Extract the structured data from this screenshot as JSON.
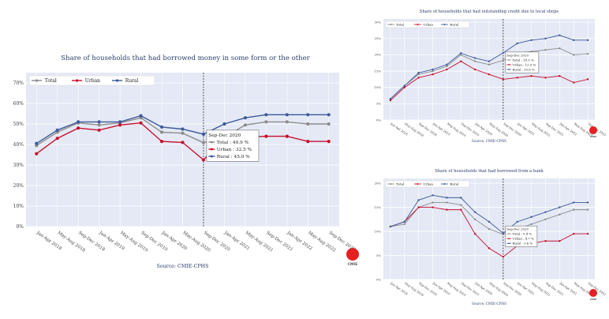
{
  "colors": {
    "total": "#8c8c8c",
    "urban": "#c8102e",
    "rural": "#3d5a99",
    "plot_bg": "#e4e9f5",
    "grid": "#ffffff",
    "title": "#2b3f6b",
    "logo_dot": "#e52020"
  },
  "logo": {
    "text": "CMIE"
  },
  "chart_data": [
    {
      "type": "line",
      "id": "main",
      "title": "Share of households that had borrowed money in some form or the other",
      "source": "Source: CMIE-CPHS",
      "categories": [
        "Jan-Apr 2018",
        "May-Aug 2018",
        "Sep-Dec 2018",
        "Jan-Apr 2019",
        "May-Aug 2019",
        "Sep-Dec 2019",
        "Jan-Apr 2020",
        "May-Aug 2020",
        "Sep-Dec 2020",
        "Jan-Apr 2021",
        "May-Aug 2021",
        "Sep-Dec 2021",
        "Jan-Apr 2022",
        "May-Aug 2022",
        "Sep-Dec 2022"
      ],
      "ylim": [
        0,
        75
      ],
      "yticks": [
        0,
        10,
        20,
        30,
        40,
        50,
        60,
        70
      ],
      "ytick_labels": [
        "0%",
        "10%",
        "20%",
        "30%",
        "40%",
        "50%",
        "60%",
        "70%"
      ],
      "series": [
        {
          "name": "Total",
          "key": "total",
          "values": [
            39.5,
            46,
            50.5,
            49.5,
            50.5,
            53,
            46,
            45.5,
            40.9,
            43.5,
            49.5,
            51,
            51,
            50,
            50
          ]
        },
        {
          "name": "Urban",
          "key": "urban",
          "values": [
            35.5,
            43,
            48,
            47,
            49.5,
            50.5,
            41.5,
            41,
            32.5,
            43,
            43.5,
            44,
            44,
            41.5,
            41.5
          ]
        },
        {
          "name": "Rural",
          "key": "rural",
          "values": [
            40.5,
            47,
            51,
            51,
            51,
            54,
            48.5,
            47.5,
            45.0,
            50,
            53,
            54.5,
            54.5,
            54.5,
            54.5
          ]
        }
      ],
      "vline_index": 8,
      "annotation": {
        "title": "Sep-Dec 2020",
        "lines": [
          "Total : 40.9 %",
          "Urban : 32.5 %",
          "Rural : 45.0 %"
        ]
      }
    },
    {
      "type": "line",
      "id": "credit",
      "title": "Share of households that had outstanding credit due to local shops",
      "source": "Source: CMIE-CPHS",
      "categories": [
        "Jan-Apr 2018",
        "May-Aug 2018",
        "Sep-Dec 2018",
        "Jan-Apr 2019",
        "May-Aug 2019",
        "Sep-Dec 2019",
        "Jan-Apr 2020",
        "May-Aug 2020",
        "Sep-Dec 2020",
        "Jan-Apr 2021",
        "May-Aug 2021",
        "Sep-Dec 2021",
        "Jan-Apr 2022",
        "May-Aug 2022",
        "Sep-Dec 2022"
      ],
      "ylim": [
        0,
        31
      ],
      "yticks": [
        0,
        5,
        10,
        15,
        20,
        25,
        30
      ],
      "ytick_labels": [
        "0%",
        "5%",
        "10%",
        "15%",
        "20%",
        "25%",
        "30%"
      ],
      "series": [
        {
          "name": "Total",
          "key": "total",
          "values": [
            6.5,
            10.5,
            14,
            15,
            16.5,
            20,
            18,
            17,
            18.3,
            20.5,
            21,
            21.5,
            22,
            20,
            20.3
          ]
        },
        {
          "name": "Urban",
          "key": "urban",
          "values": [
            6,
            10,
            13,
            14,
            15.5,
            18,
            15.5,
            14,
            12.5,
            13,
            13.5,
            13,
            13.5,
            11.5,
            12.5
          ]
        },
        {
          "name": "Rural",
          "key": "rural",
          "values": [
            6.5,
            10.5,
            14.5,
            15.5,
            17,
            20.5,
            19,
            18,
            20.6,
            23.5,
            24.5,
            25,
            26,
            24.5,
            24.5
          ]
        }
      ],
      "vline_index": 8,
      "annotation": {
        "title": "Sep-Dec 2020",
        "lines": [
          "Total : 18.3 %",
          "Urban : 12.5 %",
          "Rural : 20.6 %"
        ]
      }
    },
    {
      "type": "line",
      "id": "bank",
      "title": "Share of households that had borrowed from a bank",
      "source": "Source: CMIE-CPHS",
      "categories": [
        "Jan-Apr 2018",
        "May-Aug 2018",
        "Sep-Dec 2018",
        "Jan-Apr 2019",
        "May-Aug 2019",
        "Sep-Dec 2019",
        "Jan-Apr 2020",
        "May-Aug 2020",
        "Sep-Dec 2020",
        "Jan-Apr 2021",
        "May-Aug 2021",
        "Sep-Dec 2021",
        "Jan-Apr 2022",
        "May-Aug 2022",
        "Sep-Dec 2022"
      ],
      "ylim": [
        0,
        21
      ],
      "yticks": [
        0,
        5,
        10,
        15,
        20
      ],
      "ytick_labels": [
        "0%",
        "5%",
        "10%",
        "15%",
        "20%"
      ],
      "series": [
        {
          "name": "Total",
          "key": "total",
          "values": [
            11,
            11.5,
            15,
            16,
            16,
            15.5,
            12.5,
            10.5,
            9.4,
            10.5,
            11.5,
            12.5,
            13.5,
            14.5,
            14.5
          ]
        },
        {
          "name": "Urban",
          "key": "urban",
          "values": [
            11,
            12,
            15,
            15,
            14.5,
            14.5,
            9.5,
            6.5,
            4.7,
            7,
            7.5,
            8,
            8,
            9.5,
            9.5
          ]
        },
        {
          "name": "Rural",
          "key": "rural",
          "values": [
            11,
            12,
            16.5,
            17.5,
            17,
            17,
            14,
            12,
            9.6,
            12,
            13,
            14,
            15,
            16,
            16
          ]
        }
      ],
      "vline_index": 8,
      "annotation": {
        "title": "Sep-Dec 2020",
        "lines": [
          "Total : 9.4 %",
          "Urban : 4.7 %",
          "Rural : 9.6 %"
        ]
      }
    }
  ]
}
